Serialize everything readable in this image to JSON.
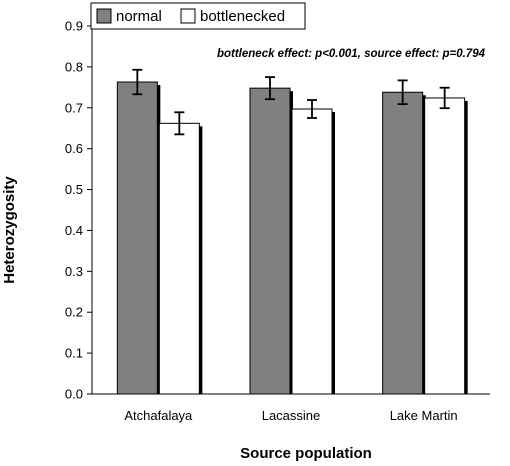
{
  "chart_data": {
    "type": "bar",
    "title": "",
    "xlabel": "Source population",
    "ylabel": "Heterozygosity",
    "categories": [
      "Atchafalaya",
      "Lacassine",
      "Lake Martin"
    ],
    "series": [
      {
        "name": "normal",
        "values": [
          0.763,
          0.748,
          0.738
        ],
        "errors": [
          0.03,
          0.027,
          0.029
        ],
        "color": "#808080"
      },
      {
        "name": "bottlenecked",
        "values": [
          0.662,
          0.697,
          0.724
        ],
        "errors": [
          0.027,
          0.022,
          0.025
        ],
        "color": "#ffffff"
      }
    ],
    "ylim": [
      0,
      0.9
    ],
    "yticks": [
      "0.0",
      "0.1",
      "0.2",
      "0.3",
      "0.4",
      "0.5",
      "0.6",
      "0.7",
      "0.8",
      "0.9"
    ],
    "grid": false,
    "legend_position": "top-left",
    "annotation": "bottleneck effect: p<0.001, source effect: p=0.794"
  }
}
